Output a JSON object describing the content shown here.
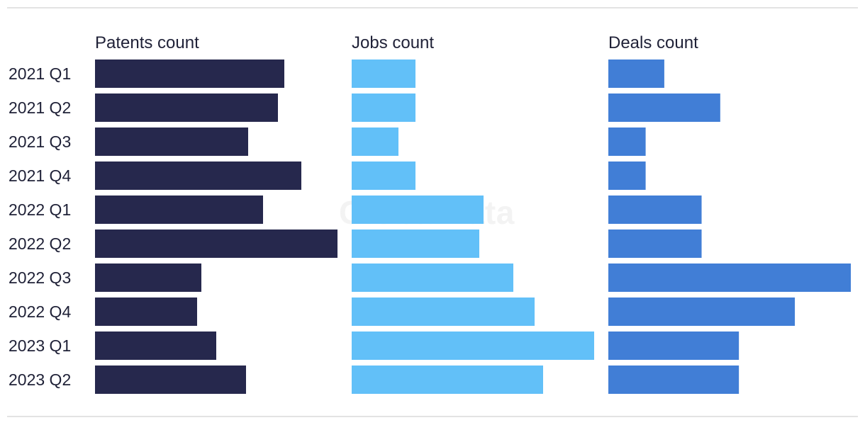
{
  "chart_data": {
    "type": "bar",
    "orientation": "horizontal",
    "categories": [
      "2021 Q1",
      "2021 Q2",
      "2021 Q3",
      "2021 Q4",
      "2022 Q1",
      "2022 Q2",
      "2022 Q3",
      "2022 Q4",
      "2023 Q1",
      "2023 Q2"
    ],
    "panels": [
      {
        "name": "Patents count",
        "color": "#26284d",
        "max": 114,
        "values": [
          89,
          86,
          72,
          97,
          79,
          114,
          50,
          48,
          57,
          71
        ]
      },
      {
        "name": "Jobs count",
        "color": "#62c0f8",
        "max": 57,
        "values": [
          15,
          15,
          11,
          15,
          31,
          30,
          38,
          43,
          57,
          45
        ]
      },
      {
        "name": "Deals count",
        "color": "#417ed6",
        "max": 13,
        "values": [
          3,
          6,
          2,
          2,
          5,
          5,
          13,
          10,
          7,
          7
        ]
      }
    ],
    "grid": false,
    "legend": "none"
  },
  "watermark": "GlobalData"
}
